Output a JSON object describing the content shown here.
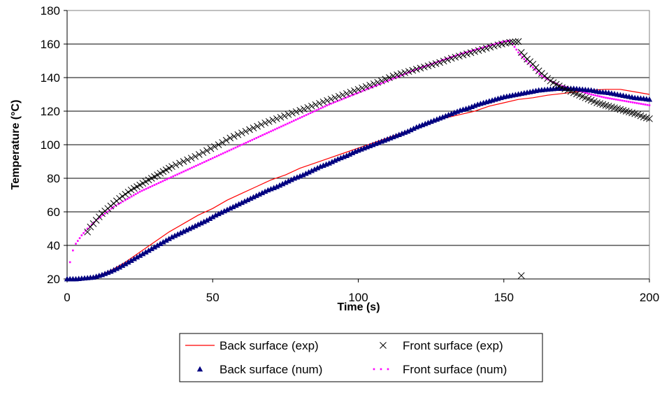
{
  "chart_data": {
    "type": "line",
    "title": "",
    "xlabel": "Time (s)",
    "ylabel": "Temperature (°C)",
    "xlim": [
      0,
      200
    ],
    "ylim": [
      20,
      180
    ],
    "x_ticks": [
      0,
      50,
      100,
      150,
      200
    ],
    "y_ticks": [
      20,
      40,
      60,
      80,
      100,
      120,
      140,
      160,
      180
    ],
    "grid": "horizontal",
    "legend_position": "bottom",
    "series": [
      {
        "name": "Back surface (exp)",
        "style": "line",
        "color": "#ff0000",
        "points": [
          [
            0,
            20
          ],
          [
            5,
            20
          ],
          [
            10,
            21.5
          ],
          [
            15,
            25
          ],
          [
            20,
            30
          ],
          [
            25,
            36
          ],
          [
            30,
            42
          ],
          [
            35,
            48
          ],
          [
            40,
            53
          ],
          [
            45,
            58
          ],
          [
            50,
            62
          ],
          [
            55,
            67
          ],
          [
            60,
            71
          ],
          [
            65,
            75
          ],
          [
            70,
            79
          ],
          [
            75,
            82
          ],
          [
            80,
            86
          ],
          [
            85,
            89
          ],
          [
            90,
            92
          ],
          [
            95,
            95
          ],
          [
            100,
            98
          ],
          [
            105,
            101
          ],
          [
            110,
            104
          ],
          [
            115,
            107
          ],
          [
            120,
            110
          ],
          [
            125,
            113
          ],
          [
            130,
            116
          ],
          [
            135,
            118
          ],
          [
            140,
            120
          ],
          [
            145,
            123
          ],
          [
            150,
            125
          ],
          [
            155,
            127
          ],
          [
            160,
            128
          ],
          [
            165,
            129.5
          ],
          [
            170,
            130.5
          ],
          [
            175,
            131.5
          ],
          [
            180,
            132.5
          ],
          [
            185,
            133
          ],
          [
            190,
            133
          ],
          [
            195,
            131.5
          ],
          [
            200,
            130
          ]
        ]
      },
      {
        "name": "Front surface (exp)",
        "style": "cross",
        "color": "#000000",
        "points": [
          [
            7,
            48
          ],
          [
            8,
            51
          ],
          [
            10,
            55
          ],
          [
            12,
            59
          ],
          [
            14,
            62
          ],
          [
            16,
            65
          ],
          [
            18,
            68
          ],
          [
            20,
            70.5
          ],
          [
            22,
            73
          ],
          [
            25,
            76
          ],
          [
            28,
            79
          ],
          [
            30,
            81
          ],
          [
            33,
            84
          ],
          [
            36,
            87
          ],
          [
            40,
            90
          ],
          [
            44,
            93
          ],
          [
            48,
            96.5
          ],
          [
            52,
            100
          ],
          [
            56,
            104
          ],
          [
            60,
            107
          ],
          [
            64,
            110
          ],
          [
            68,
            113
          ],
          [
            72,
            115.5
          ],
          [
            76,
            118
          ],
          [
            80,
            120.5
          ],
          [
            84,
            123
          ],
          [
            88,
            125.5
          ],
          [
            92,
            128
          ],
          [
            96,
            130.5
          ],
          [
            100,
            133
          ],
          [
            104,
            135.5
          ],
          [
            108,
            138
          ],
          [
            112,
            141
          ],
          [
            116,
            143
          ],
          [
            120,
            145
          ],
          [
            124,
            147
          ],
          [
            128,
            149
          ],
          [
            132,
            151.5
          ],
          [
            136,
            153.5
          ],
          [
            140,
            155.5
          ],
          [
            144,
            157.5
          ],
          [
            148,
            159.5
          ],
          [
            152,
            161
          ],
          [
            155,
            161.5
          ],
          [
            156,
            155
          ],
          [
            158,
            151
          ],
          [
            160,
            148
          ],
          [
            162,
            144
          ],
          [
            164,
            141
          ],
          [
            166,
            138
          ],
          [
            168,
            136
          ],
          [
            170,
            134
          ],
          [
            172,
            132.5
          ],
          [
            174,
            131
          ],
          [
            176,
            129.5
          ],
          [
            178,
            128
          ],
          [
            180,
            126.5
          ],
          [
            182,
            125
          ],
          [
            184,
            124
          ],
          [
            186,
            123
          ],
          [
            188,
            122
          ],
          [
            190,
            121
          ],
          [
            192,
            120
          ],
          [
            194,
            119
          ],
          [
            196,
            118
          ],
          [
            198,
            116.5
          ],
          [
            200,
            115.5
          ],
          [
            156,
            22
          ]
        ]
      },
      {
        "name": "Back surface (num)",
        "style": "triangle",
        "color": "#000080",
        "points": [
          [
            0,
            20
          ],
          [
            3,
            20
          ],
          [
            6,
            20.5
          ],
          [
            9,
            21
          ],
          [
            12,
            22.5
          ],
          [
            15,
            24.5
          ],
          [
            18,
            27
          ],
          [
            21,
            30
          ],
          [
            24,
            33
          ],
          [
            27,
            36
          ],
          [
            30,
            39
          ],
          [
            33,
            42
          ],
          [
            36,
            45
          ],
          [
            39,
            47.5
          ],
          [
            42,
            50
          ],
          [
            45,
            52.5
          ],
          [
            48,
            55
          ],
          [
            51,
            58
          ],
          [
            54,
            60.5
          ],
          [
            57,
            63
          ],
          [
            60,
            65.5
          ],
          [
            63,
            68
          ],
          [
            66,
            70.5
          ],
          [
            69,
            73
          ],
          [
            72,
            75
          ],
          [
            75,
            77.5
          ],
          [
            78,
            80
          ],
          [
            81,
            82
          ],
          [
            84,
            84.5
          ],
          [
            87,
            87
          ],
          [
            90,
            89
          ],
          [
            93,
            91.5
          ],
          [
            96,
            93.5
          ],
          [
            99,
            96
          ],
          [
            102,
            98
          ],
          [
            105,
            100
          ],
          [
            108,
            102
          ],
          [
            111,
            104
          ],
          [
            114,
            106
          ],
          [
            117,
            108
          ],
          [
            120,
            110.5
          ],
          [
            123,
            112.5
          ],
          [
            126,
            114.5
          ],
          [
            129,
            116.5
          ],
          [
            132,
            118.5
          ],
          [
            135,
            120.5
          ],
          [
            138,
            122
          ],
          [
            141,
            124
          ],
          [
            144,
            125.5
          ],
          [
            147,
            127
          ],
          [
            150,
            128.5
          ],
          [
            153,
            129.5
          ],
          [
            156,
            130.5
          ],
          [
            159,
            131.5
          ],
          [
            162,
            132.5
          ],
          [
            165,
            133
          ],
          [
            168,
            133.5
          ],
          [
            171,
            133.5
          ],
          [
            174,
            133.5
          ],
          [
            177,
            133
          ],
          [
            180,
            132.5
          ],
          [
            183,
            131.5
          ],
          [
            186,
            131
          ],
          [
            189,
            130
          ],
          [
            192,
            129
          ],
          [
            195,
            128
          ],
          [
            198,
            127.5
          ],
          [
            200,
            127
          ]
        ]
      },
      {
        "name": "Front surface (num)",
        "style": "dots",
        "color": "#ff00ff",
        "points": [
          [
            0,
            20
          ],
          [
            1,
            30
          ],
          [
            2,
            37
          ],
          [
            3,
            41
          ],
          [
            5,
            46
          ],
          [
            7,
            50
          ],
          [
            10,
            55
          ],
          [
            13,
            59
          ],
          [
            16,
            63
          ],
          [
            20,
            67
          ],
          [
            25,
            72
          ],
          [
            30,
            76
          ],
          [
            35,
            80
          ],
          [
            40,
            84
          ],
          [
            45,
            88
          ],
          [
            50,
            92
          ],
          [
            55,
            96
          ],
          [
            60,
            100
          ],
          [
            65,
            104
          ],
          [
            70,
            108
          ],
          [
            75,
            112
          ],
          [
            80,
            116
          ],
          [
            85,
            120
          ],
          [
            90,
            124
          ],
          [
            95,
            127.5
          ],
          [
            100,
            131
          ],
          [
            105,
            134.5
          ],
          [
            110,
            138
          ],
          [
            115,
            141.5
          ],
          [
            120,
            145
          ],
          [
            125,
            148
          ],
          [
            130,
            151
          ],
          [
            135,
            154
          ],
          [
            140,
            156.5
          ],
          [
            145,
            159
          ],
          [
            150,
            161.5
          ],
          [
            152,
            162
          ],
          [
            153,
            160
          ],
          [
            155,
            155
          ],
          [
            157,
            151
          ],
          [
            160,
            146
          ],
          [
            163,
            141
          ],
          [
            166,
            138
          ],
          [
            170,
            135
          ],
          [
            175,
            132.5
          ],
          [
            180,
            130
          ],
          [
            185,
            128
          ],
          [
            190,
            126.5
          ],
          [
            195,
            125
          ],
          [
            200,
            123.5
          ]
        ]
      }
    ]
  }
}
